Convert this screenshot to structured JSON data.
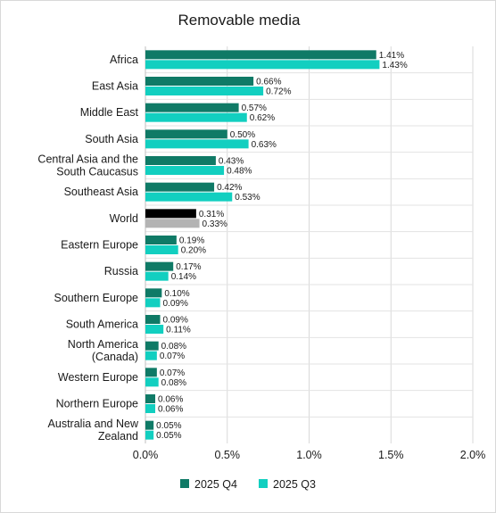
{
  "chart_data": {
    "type": "bar",
    "orientation": "horizontal",
    "title": "Removable media",
    "xlabel": "",
    "ylabel": "",
    "xlim": [
      0,
      2.0
    ],
    "x_ticks": [
      "0.0%",
      "0.5%",
      "1.0%",
      "1.5%",
      "2.0%"
    ],
    "grid": "vertical",
    "legend": "bottom",
    "categories": [
      "Africa",
      "East Asia",
      "Middle East",
      "South Asia",
      "Central Asia and the South Caucasus",
      "Southeast Asia",
      "World",
      "Eastern Europe",
      "Russia",
      "Southern Europe",
      "South America",
      "North America (Canada)",
      "Western Europe",
      "Northern Europe",
      "Australia and New Zealand"
    ],
    "category_lines": [
      [
        "Africa"
      ],
      [
        "East Asia"
      ],
      [
        "Middle East"
      ],
      [
        "South Asia"
      ],
      [
        "Central Asia and the",
        "South Caucasus"
      ],
      [
        "Southeast Asia"
      ],
      [
        "World"
      ],
      [
        "Eastern Europe"
      ],
      [
        "Russia"
      ],
      [
        "Southern Europe"
      ],
      [
        "South America"
      ],
      [
        "North America",
        "(Canada)"
      ],
      [
        "Western Europe"
      ],
      [
        "Northern Europe"
      ],
      [
        "Australia and New",
        "Zealand"
      ]
    ],
    "series": [
      {
        "name": "2025 Q4",
        "color": "#0f7a66",
        "values": [
          1.41,
          0.66,
          0.57,
          0.5,
          0.43,
          0.42,
          0.31,
          0.19,
          0.17,
          0.1,
          0.09,
          0.08,
          0.07,
          0.06,
          0.05
        ],
        "labels": [
          "1.41%",
          "0.66%",
          "0.57%",
          "0.50%",
          "0.43%",
          "0.42%",
          "0.31%",
          "0.19%",
          "0.17%",
          "0.10%",
          "0.09%",
          "0.08%",
          "0.07%",
          "0.06%",
          "0.05%"
        ]
      },
      {
        "name": "2025 Q3",
        "color": "#12cfc0",
        "values": [
          1.43,
          0.72,
          0.62,
          0.63,
          0.48,
          0.53,
          0.33,
          0.2,
          0.14,
          0.09,
          0.11,
          0.07,
          0.08,
          0.06,
          0.05
        ],
        "labels": [
          "1.43%",
          "0.72%",
          "0.62%",
          "0.63%",
          "0.48%",
          "0.53%",
          "0.33%",
          "0.20%",
          "0.14%",
          "0.09%",
          "0.11%",
          "0.07%",
          "0.08%",
          "0.06%",
          "0.05%"
        ]
      }
    ],
    "highlight": {
      "category": "World",
      "colors": [
        "#000000",
        "#b3b3b3"
      ]
    }
  }
}
